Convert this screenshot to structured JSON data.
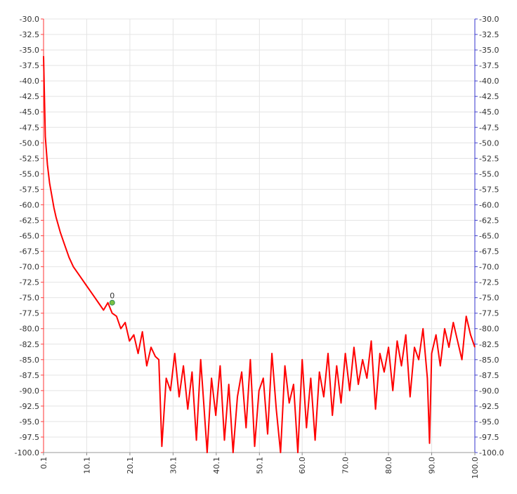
{
  "chart_data": {
    "type": "line",
    "title": "",
    "xlabel": "",
    "ylabel": "",
    "xlim": [
      0.1,
      100.0
    ],
    "ylim": [
      -100.0,
      -30.0
    ],
    "x_ticks": [
      "0.1",
      "10.1",
      "20.1",
      "30.1",
      "40.1",
      "50.1",
      "60.0",
      "70.0",
      "80.0",
      "90.0",
      "100.0"
    ],
    "y_ticks_left": [
      "-30.0",
      "-32.5",
      "-35.0",
      "-37.5",
      "-40.0",
      "-42.5",
      "-45.0",
      "-47.5",
      "-50.0",
      "-52.5",
      "-55.0",
      "-57.5",
      "-60.0",
      "-62.5",
      "-65.0",
      "-67.5",
      "-70.0",
      "-72.5",
      "-75.0",
      "-77.5",
      "-80.0",
      "-82.5",
      "-85.0",
      "-87.5",
      "-90.0",
      "-92.5",
      "-95.0",
      "-97.5",
      "-100.0"
    ],
    "y_ticks_right": [
      "-30.0",
      "-32.5",
      "-35.0",
      "-37.5",
      "-40.0",
      "-42.5",
      "-45.0",
      "-47.5",
      "-50.0",
      "-52.5",
      "-55.0",
      "-57.5",
      "-60.0",
      "-62.5",
      "-65.0",
      "-67.5",
      "-70.0",
      "-72.5",
      "-75.0",
      "-77.5",
      "-80.0",
      "-82.5",
      "-85.0",
      "-87.5",
      "-90.0",
      "-92.5",
      "-95.0",
      "-97.5",
      "-100.0"
    ],
    "grid": true,
    "legend": "none",
    "series": [
      {
        "color": "#ff0000",
        "x": [
          0.1,
          0.5,
          1.0,
          1.5,
          2.0,
          2.5,
          3.0,
          4.0,
          5.0,
          6.0,
          7.0,
          8.0,
          9.0,
          10.0,
          11.0,
          12.0,
          13.0,
          14.0,
          15.0,
          16.0,
          17.0,
          18.0,
          19.0,
          20.0,
          21.0,
          22.0,
          23.0,
          24.0,
          25.0,
          26.0,
          26.8,
          27.5,
          28.5,
          29.5,
          30.5,
          31.5,
          32.5,
          33.5,
          34.5,
          35.5,
          36.5,
          37.0,
          38.0,
          39.0,
          40.0,
          41.0,
          42.0,
          43.0,
          44.0,
          45.0,
          46.0,
          47.0,
          48.0,
          49.0,
          50.0,
          51.0,
          52.0,
          53.0,
          54.0,
          55.0,
          56.0,
          57.0,
          58.0,
          59.0,
          60.0,
          61.0,
          62.0,
          63.0,
          64.0,
          65.0,
          66.0,
          67.0,
          68.0,
          69.0,
          70.0,
          71.0,
          72.0,
          73.0,
          74.0,
          75.0,
          76.0,
          77.0,
          78.0,
          79.0,
          80.0,
          81.0,
          82.0,
          83.0,
          84.0,
          85.0,
          86.0,
          87.0,
          88.0,
          89.0,
          89.5,
          90.0,
          91.0,
          92.0,
          93.0,
          94.0,
          95.0,
          96.0,
          97.0,
          98.0,
          99.0,
          100.0
        ],
        "y": [
          -36.0,
          -49.0,
          -53.5,
          -56.5,
          -58.5,
          -60.5,
          -62.0,
          -64.5,
          -66.5,
          -68.5,
          -70.0,
          -71.0,
          -72.0,
          -73.0,
          -74.0,
          -75.0,
          -76.0,
          -77.0,
          -75.8,
          -77.5,
          -78.0,
          -80.0,
          -79.0,
          -82.0,
          -81.0,
          -84.0,
          -80.5,
          -86.0,
          -83.0,
          -84.5,
          -85.0,
          -99.0,
          -88.0,
          -90.0,
          -84.0,
          -91.0,
          -86.0,
          -93.0,
          -87.0,
          -98.0,
          -85.0,
          -90.0,
          -100.0,
          -88.0,
          -94.0,
          -86.0,
          -98.0,
          -89.0,
          -100.0,
          -91.0,
          -87.0,
          -96.0,
          -85.0,
          -99.0,
          -90.0,
          -88.0,
          -97.0,
          -84.0,
          -93.0,
          -100.0,
          -86.0,
          -92.0,
          -89.0,
          -100.0,
          -85.0,
          -96.0,
          -88.0,
          -98.0,
          -87.0,
          -91.0,
          -84.0,
          -94.0,
          -86.0,
          -92.0,
          -84.0,
          -90.0,
          -83.0,
          -89.0,
          -85.0,
          -88.0,
          -82.0,
          -93.0,
          -84.0,
          -87.0,
          -83.0,
          -90.0,
          -82.0,
          -86.0,
          -81.0,
          -91.0,
          -83.0,
          -85.0,
          -80.0,
          -88.0,
          -98.5,
          -84.0,
          -81.0,
          -86.0,
          -80.0,
          -83.0,
          -79.0,
          -82.0,
          -85.0,
          -78.0,
          -81.0,
          -83.0
        ]
      }
    ],
    "annotations": [
      {
        "x": 16.0,
        "y": -75.8,
        "label": "0",
        "color": "#2e8b57"
      }
    ]
  }
}
